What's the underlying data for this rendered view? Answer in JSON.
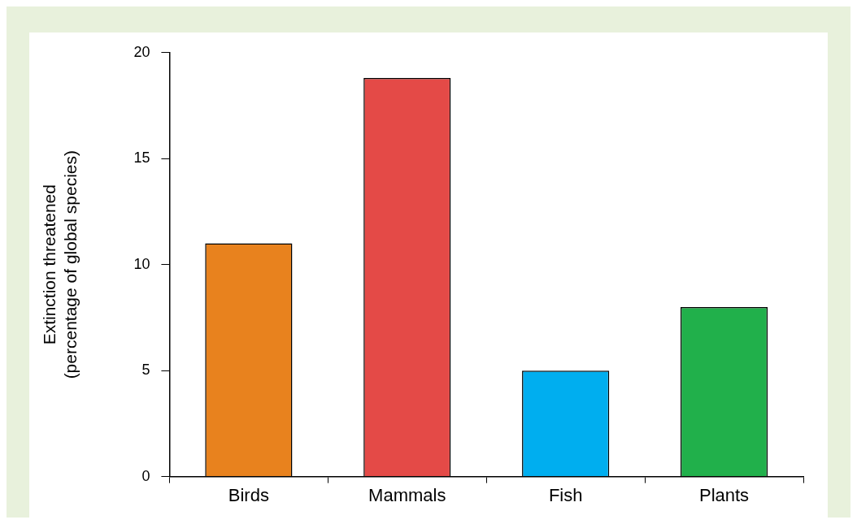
{
  "chart_data": {
    "type": "bar",
    "ylabel": "Extinction threatened\n(percentage of global species)",
    "categories": [
      "Birds",
      "Mammals",
      "Fish",
      "Plants"
    ],
    "values": [
      11,
      18.8,
      5,
      8
    ],
    "colors": [
      "#e8821e",
      "#e44a47",
      "#00aeef",
      "#21b04b"
    ],
    "ylim": [
      0,
      20
    ],
    "yticks": [
      0,
      5,
      10,
      15,
      20
    ],
    "grid": false,
    "legend": false
  }
}
